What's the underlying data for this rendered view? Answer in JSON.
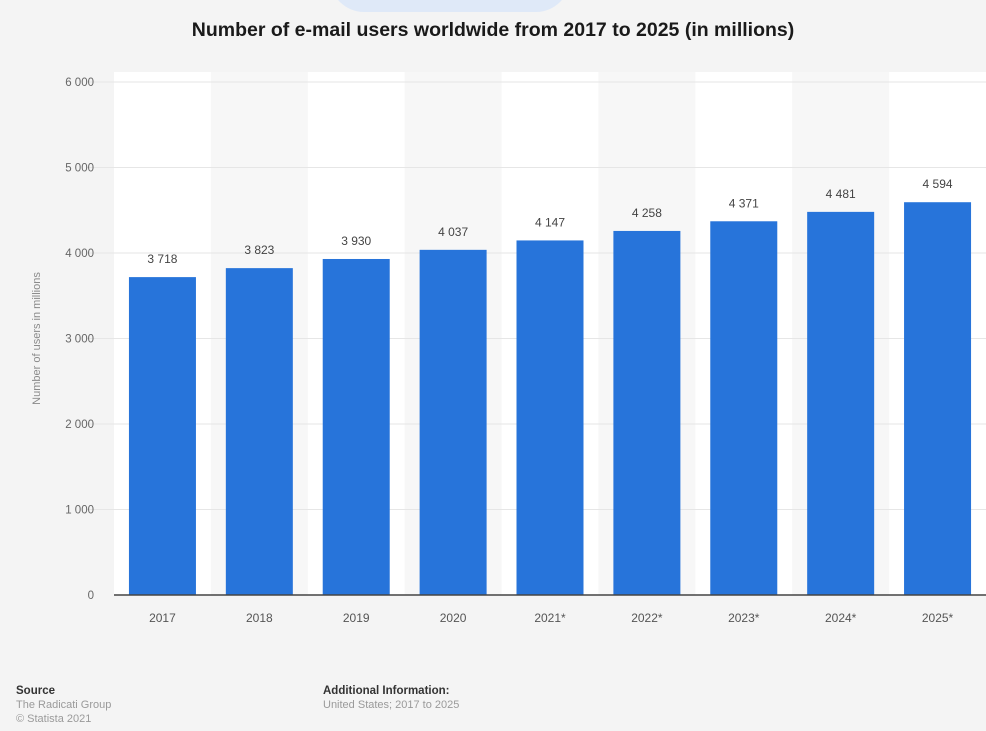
{
  "chart_data": {
    "type": "bar",
    "title": "Number of e-mail users worldwide from 2017 to 2025 (in millions)",
    "xlabel": "",
    "ylabel": "Number of users in millions",
    "categories": [
      "2017",
      "2018",
      "2019",
      "2020",
      "2021*",
      "2022*",
      "2023*",
      "2024*",
      "2025*"
    ],
    "values": [
      3718,
      3823,
      3930,
      4037,
      4147,
      4258,
      4371,
      4481,
      4594
    ],
    "value_labels": [
      "3 718",
      "3 823",
      "3 930",
      "4 037",
      "4 147",
      "4 258",
      "4 371",
      "4 481",
      "4 594"
    ],
    "ylim": [
      0,
      6000
    ],
    "yticks": [
      0,
      1000,
      2000,
      3000,
      4000,
      5000,
      6000
    ],
    "ytick_labels": [
      "0",
      "1 000",
      "2 000",
      "3 000",
      "4 000",
      "5 000",
      "6 000"
    ],
    "grid": true,
    "bar_color": "#2774da"
  },
  "footer": {
    "source_heading": "Source",
    "source_lines": [
      "The Radicati Group",
      "© Statista 2021"
    ],
    "info_heading": "Additional Information:",
    "info_lines": [
      "United States; 2017 to 2025"
    ]
  }
}
